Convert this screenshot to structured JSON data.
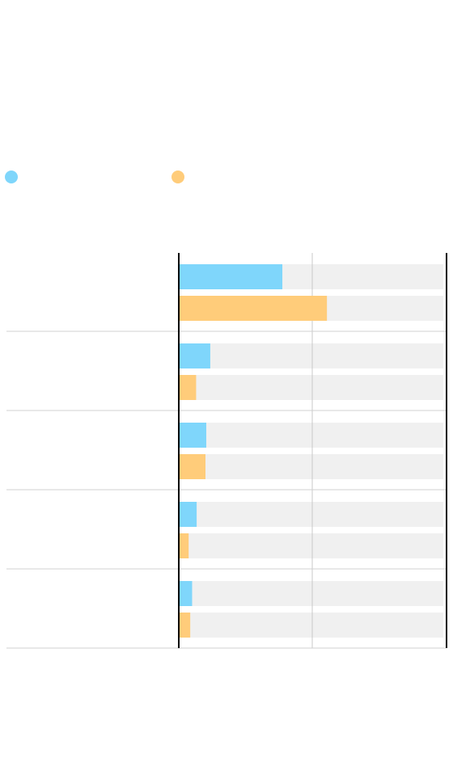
{
  "chart_data": {
    "type": "bar",
    "orientation": "horizontal",
    "title": "",
    "subtitle": "",
    "xlabel": "",
    "ylabel": "",
    "categories": [
      "",
      "",
      "",
      "",
      ""
    ],
    "series": [
      {
        "name": "",
        "color": "#7fd6fb",
        "values": [
          38.8,
          11.8,
          10.3,
          6.7,
          5.0
        ]
      },
      {
        "name": "",
        "color": "#ffcc7a",
        "values": [
          55.5,
          6.5,
          10.0,
          3.7,
          4.3
        ]
      }
    ],
    "xlim": [
      0,
      100
    ],
    "track_color": "#f0f0f0",
    "gridlines": [
      50
    ],
    "grid": true,
    "legend_position": "top-left",
    "data_labels": [
      "",
      "",
      "",
      "",
      "",
      "",
      "",
      "",
      "",
      ""
    ]
  }
}
